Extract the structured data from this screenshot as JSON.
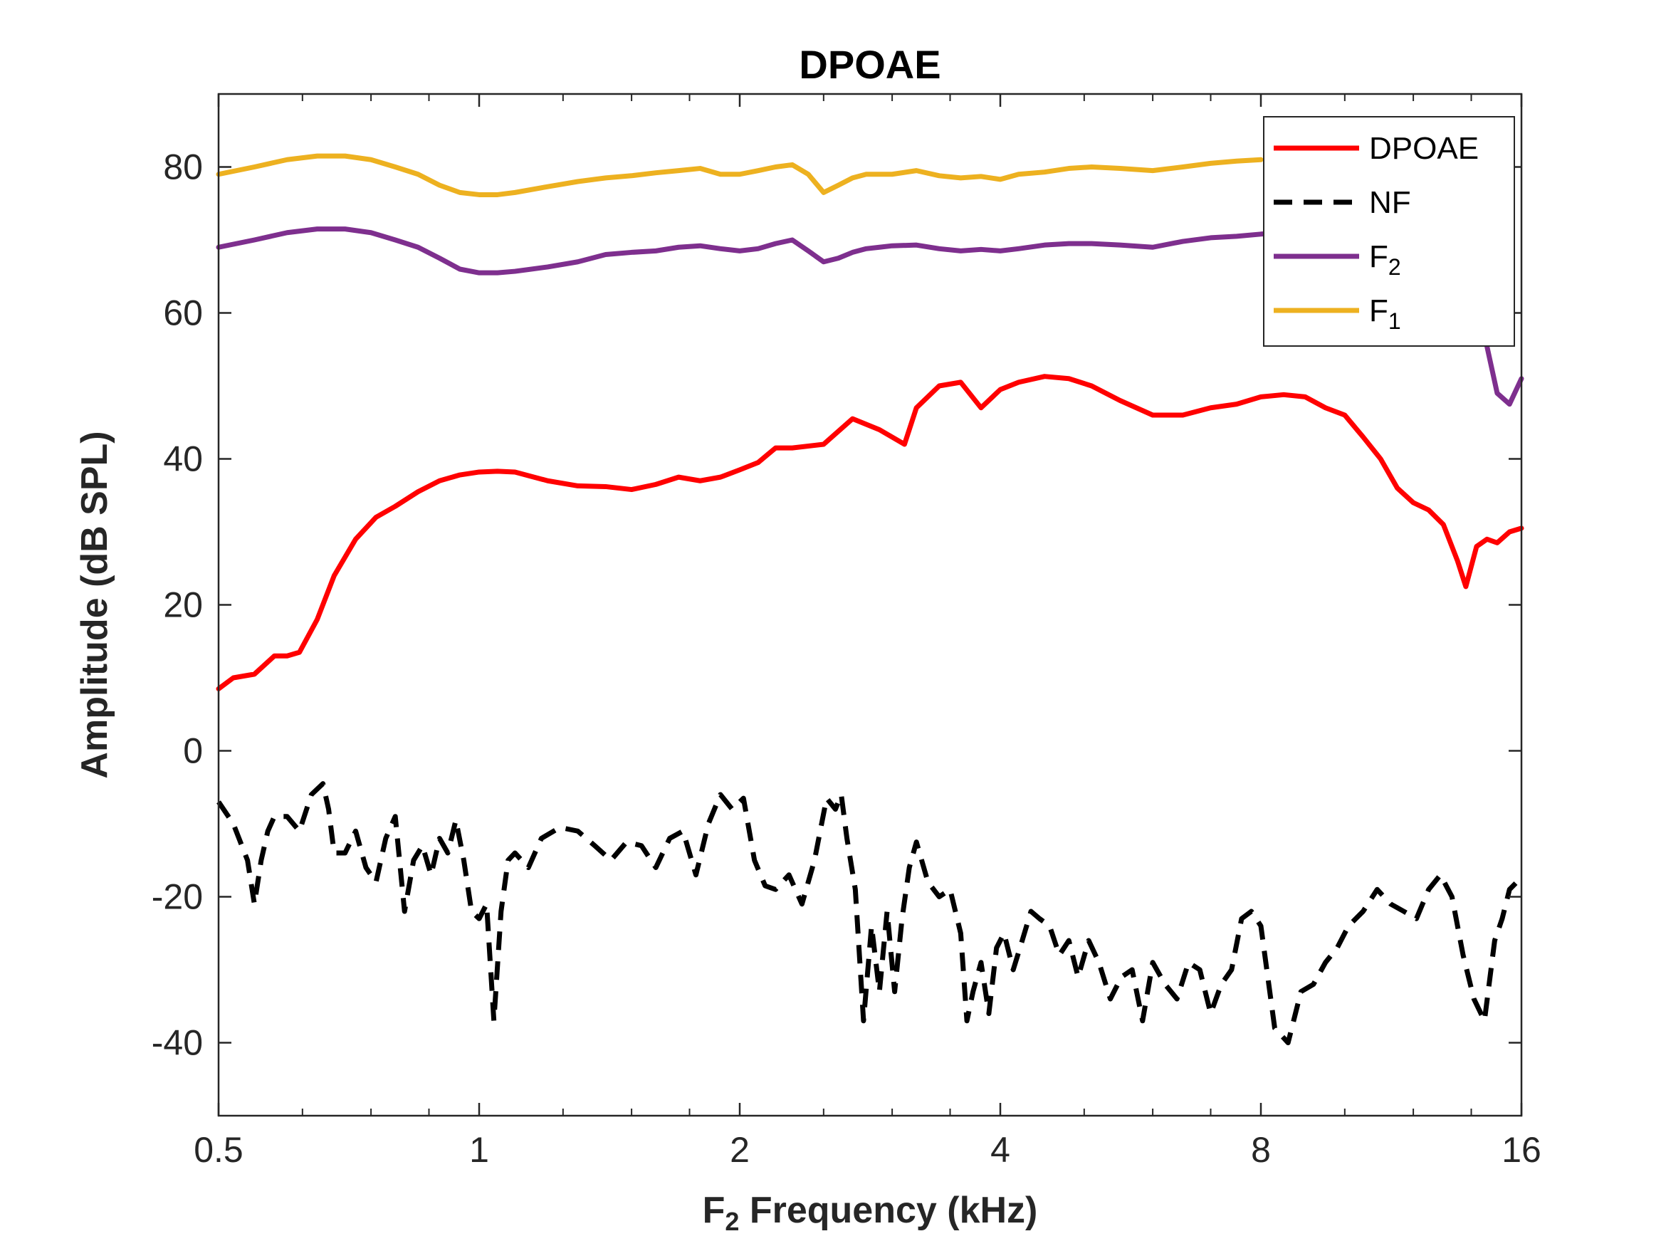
{
  "chart_data": {
    "type": "line",
    "title": "DPOAE",
    "xlabel": {
      "prefix": "F",
      "subscript": "2",
      "suffix": " Frequency (kHz)"
    },
    "ylabel": "Amplitude (dB SPL)",
    "xscale": "log2",
    "xlim": [
      0.5,
      16
    ],
    "ylim": [
      -50,
      90
    ],
    "xticks": [
      0.5,
      1,
      2,
      4,
      8,
      16
    ],
    "xtick_labels": [
      "0.5",
      "1",
      "2",
      "4",
      "8",
      "16"
    ],
    "yticks": [
      -40,
      -20,
      0,
      20,
      40,
      60,
      80
    ],
    "ytick_labels": [
      "-40",
      "-20",
      "0",
      "20",
      "40",
      "60",
      "80"
    ],
    "grid": false,
    "legend_position": "top-right",
    "series": [
      {
        "name": "DPOAE",
        "name_sub": "",
        "color": "#ff0000",
        "style": "solid",
        "x": [
          0.5,
          0.52,
          0.55,
          0.58,
          0.6,
          0.62,
          0.65,
          0.68,
          0.72,
          0.76,
          0.8,
          0.85,
          0.9,
          0.95,
          1.0,
          1.05,
          1.1,
          1.2,
          1.3,
          1.4,
          1.5,
          1.6,
          1.7,
          1.8,
          1.9,
          2.0,
          2.1,
          2.2,
          2.3,
          2.5,
          2.7,
          2.9,
          3.1,
          3.2,
          3.4,
          3.6,
          3.8,
          4.0,
          4.2,
          4.5,
          4.8,
          5.1,
          5.5,
          6.0,
          6.5,
          7.0,
          7.5,
          8.0,
          8.5,
          9.0,
          9.5,
          10.0,
          10.5,
          11.0,
          11.5,
          12.0,
          12.5,
          13.0,
          13.5,
          13.8,
          14.2,
          14.6,
          15.0,
          15.5,
          16.0
        ],
        "values": [
          8.5,
          10.0,
          10.5,
          13.0,
          13.0,
          13.5,
          18.0,
          24.0,
          29.0,
          32.0,
          33.5,
          35.5,
          37.0,
          37.8,
          38.2,
          38.3,
          38.2,
          37.0,
          36.3,
          36.2,
          35.8,
          36.5,
          37.5,
          37.0,
          37.5,
          38.5,
          39.5,
          41.5,
          41.5,
          42.0,
          45.5,
          44.0,
          42.0,
          47.0,
          50.0,
          50.5,
          47.0,
          49.5,
          50.5,
          51.3,
          51.0,
          50.0,
          48.0,
          46.0,
          46.0,
          47.0,
          47.5,
          48.5,
          48.8,
          48.5,
          47.0,
          46.0,
          43.0,
          40.0,
          36.0,
          34.0,
          33.0,
          31.0,
          26.0,
          22.5,
          28.0,
          29.0,
          28.5,
          30.0,
          30.5
        ]
      },
      {
        "name": "NF",
        "name_sub": "",
        "color": "#000000",
        "style": "dashed",
        "x": [
          0.5,
          0.52,
          0.54,
          0.55,
          0.56,
          0.57,
          0.58,
          0.6,
          0.62,
          0.64,
          0.66,
          0.67,
          0.68,
          0.7,
          0.72,
          0.74,
          0.76,
          0.78,
          0.8,
          0.82,
          0.84,
          0.86,
          0.88,
          0.9,
          0.92,
          0.94,
          0.96,
          0.98,
          1.0,
          1.02,
          1.04,
          1.06,
          1.08,
          1.1,
          1.14,
          1.18,
          1.24,
          1.3,
          1.36,
          1.42,
          1.48,
          1.54,
          1.6,
          1.66,
          1.72,
          1.78,
          1.84,
          1.9,
          1.96,
          2.02,
          2.08,
          2.14,
          2.2,
          2.28,
          2.36,
          2.44,
          2.52,
          2.58,
          2.62,
          2.66,
          2.72,
          2.78,
          2.84,
          2.9,
          2.96,
          3.02,
          3.08,
          3.14,
          3.2,
          3.3,
          3.4,
          3.5,
          3.6,
          3.66,
          3.72,
          3.8,
          3.88,
          3.96,
          4.04,
          4.14,
          4.24,
          4.34,
          4.44,
          4.56,
          4.68,
          4.8,
          4.92,
          5.06,
          5.2,
          5.36,
          5.52,
          5.68,
          5.84,
          6.0,
          6.2,
          6.4,
          6.6,
          6.8,
          7.0,
          7.2,
          7.4,
          7.6,
          7.8,
          8.0,
          8.3,
          8.6,
          8.9,
          9.2,
          9.5,
          9.8,
          10.1,
          10.5,
          10.9,
          11.3,
          11.7,
          12.1,
          12.5,
          12.9,
          13.3,
          13.7,
          14.1,
          14.5,
          14.9,
          15.2,
          15.5,
          15.8,
          16.0
        ],
        "values": [
          -7.0,
          -10.0,
          -15.0,
          -21.0,
          -15.0,
          -11.0,
          -9.0,
          -9.0,
          -11.0,
          -6.0,
          -4.5,
          -8.0,
          -14.0,
          -14.0,
          -11.0,
          -16.0,
          -18.0,
          -12.0,
          -9.0,
          -22.0,
          -15.0,
          -13.0,
          -17.0,
          -12.0,
          -14.0,
          -9.5,
          -15.0,
          -22.0,
          -23.0,
          -21.0,
          -37.0,
          -22.0,
          -15.0,
          -14.0,
          -16.0,
          -12.0,
          -10.5,
          -11.0,
          -13.0,
          -15.0,
          -12.5,
          -13.0,
          -16.0,
          -12.0,
          -11.0,
          -17.0,
          -10.0,
          -6.0,
          -8.0,
          -6.5,
          -15.0,
          -18.5,
          -19.0,
          -17.0,
          -21.0,
          -15.0,
          -6.5,
          -8.0,
          -6.0,
          -12.0,
          -19.0,
          -37.0,
          -24.0,
          -33.0,
          -22.0,
          -33.0,
          -23.0,
          -16.0,
          -12.5,
          -18.0,
          -20.0,
          -19.0,
          -25.0,
          -37.0,
          -33.0,
          -29.0,
          -36.0,
          -27.0,
          -25.0,
          -30.0,
          -26.0,
          -22.0,
          -23.0,
          -24.0,
          -28.0,
          -26.0,
          -31.0,
          -26.0,
          -29.0,
          -34.0,
          -31.0,
          -30.0,
          -37.0,
          -29.0,
          -32.0,
          -34.0,
          -29.0,
          -30.0,
          -36.0,
          -32.0,
          -30.0,
          -23.0,
          -22.0,
          -24.0,
          -38.0,
          -40.0,
          -33.0,
          -32.0,
          -29.0,
          -27.0,
          -24.0,
          -22.0,
          -19.0,
          -21.0,
          -22.0,
          -23.0,
          -19.0,
          -17.0,
          -20.0,
          -28.0,
          -34.0,
          -37.0,
          -26.0,
          -23.0,
          -19.0,
          -18.0,
          -17.5
        ]
      },
      {
        "name": "F",
        "name_sub": "2",
        "color": "#7e2f8e",
        "style": "solid",
        "x": [
          0.5,
          0.55,
          0.6,
          0.65,
          0.7,
          0.75,
          0.8,
          0.85,
          0.9,
          0.95,
          1.0,
          1.05,
          1.1,
          1.2,
          1.3,
          1.4,
          1.5,
          1.6,
          1.7,
          1.8,
          1.9,
          2.0,
          2.1,
          2.2,
          2.3,
          2.4,
          2.5,
          2.6,
          2.7,
          2.8,
          2.9,
          3.0,
          3.2,
          3.4,
          3.6,
          3.8,
          4.0,
          4.2,
          4.5,
          4.8,
          5.1,
          5.5,
          6.0,
          6.5,
          7.0,
          7.5,
          8.0,
          8.5,
          9.0,
          9.5,
          10.0,
          10.5,
          11.0,
          11.5,
          12.0,
          12.5,
          13.0,
          13.5,
          14.0,
          14.5,
          15.0,
          15.5,
          16.0
        ],
        "values": [
          69.0,
          70.0,
          71.0,
          71.5,
          71.5,
          71.0,
          70.0,
          69.0,
          67.5,
          66.0,
          65.5,
          65.5,
          65.7,
          66.3,
          67.0,
          68.0,
          68.3,
          68.5,
          69.0,
          69.2,
          68.8,
          68.5,
          68.8,
          69.5,
          70.0,
          68.5,
          67.0,
          67.5,
          68.3,
          68.8,
          69.0,
          69.2,
          69.3,
          68.8,
          68.5,
          68.7,
          68.5,
          68.8,
          69.3,
          69.5,
          69.5,
          69.3,
          69.0,
          69.8,
          70.3,
          70.5,
          70.8,
          71.0,
          71.0,
          71.0,
          71.0,
          70.8,
          70.5,
          70.3,
          70.0,
          69.0,
          68.0,
          66.0,
          63.0,
          57.0,
          49.0,
          47.5,
          51.0
        ]
      },
      {
        "name": "F",
        "name_sub": "1",
        "color": "#edb120",
        "style": "solid",
        "x": [
          0.5,
          0.55,
          0.6,
          0.65,
          0.7,
          0.75,
          0.8,
          0.85,
          0.9,
          0.95,
          1.0,
          1.05,
          1.1,
          1.2,
          1.3,
          1.4,
          1.5,
          1.6,
          1.7,
          1.8,
          1.9,
          2.0,
          2.1,
          2.2,
          2.3,
          2.4,
          2.5,
          2.6,
          2.7,
          2.8,
          2.9,
          3.0,
          3.2,
          3.4,
          3.6,
          3.8,
          4.0,
          4.2,
          4.5,
          4.8,
          5.1,
          5.5,
          6.0,
          6.5,
          7.0,
          7.5,
          8.0
        ],
        "values": [
          79.0,
          80.0,
          81.0,
          81.5,
          81.5,
          81.0,
          80.0,
          79.0,
          77.5,
          76.5,
          76.2,
          76.2,
          76.5,
          77.3,
          78.0,
          78.5,
          78.8,
          79.2,
          79.5,
          79.8,
          79.0,
          79.0,
          79.5,
          80.0,
          80.3,
          79.0,
          76.5,
          77.5,
          78.5,
          79.0,
          79.0,
          79.0,
          79.5,
          78.8,
          78.5,
          78.7,
          78.3,
          79.0,
          79.3,
          79.8,
          80.0,
          79.8,
          79.5,
          80.0,
          80.5,
          80.8,
          81.0
        ]
      }
    ]
  }
}
